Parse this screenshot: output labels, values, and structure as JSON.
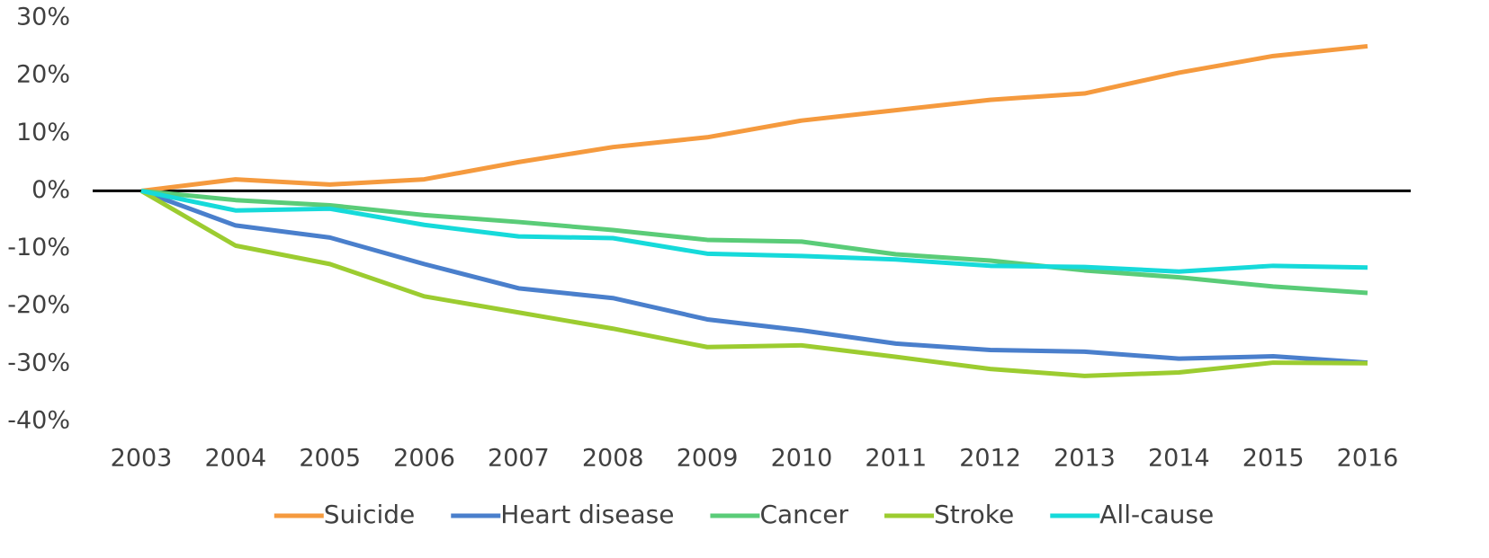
{
  "chart_data": {
    "type": "line",
    "categories": [
      "2003",
      "2004",
      "2005",
      "2006",
      "2007",
      "2008",
      "2009",
      "2010",
      "2011",
      "2012",
      "2013",
      "2014",
      "2015",
      "2016"
    ],
    "series": [
      {
        "name": "Suicide",
        "color": "#f59a3e",
        "values": [
          0,
          2.0,
          1.1,
          2.0,
          5.0,
          7.6,
          9.3,
          12.2,
          14.0,
          15.8,
          16.9,
          20.5,
          23.4,
          25.1
        ]
      },
      {
        "name": "Heart disease",
        "color": "#4a7fcc",
        "values": [
          0,
          -6.0,
          -8.1,
          -12.7,
          -16.9,
          -18.6,
          -22.3,
          -24.2,
          -26.5,
          -27.6,
          -27.9,
          -29.1,
          -28.7,
          -29.8
        ]
      },
      {
        "name": "Cancer",
        "color": "#5acc78",
        "values": [
          0,
          -1.6,
          -2.5,
          -4.2,
          -5.4,
          -6.8,
          -8.5,
          -8.8,
          -11.0,
          -12.1,
          -13.8,
          -15.0,
          -16.6,
          -17.7
        ]
      },
      {
        "name": "Stroke",
        "color": "#9ccc30",
        "values": [
          0,
          -9.5,
          -12.7,
          -18.3,
          -21.1,
          -23.9,
          -27.1,
          -26.8,
          -28.8,
          -30.9,
          -32.1,
          -31.5,
          -29.8,
          -29.9
        ]
      },
      {
        "name": "All-cause",
        "color": "#16dada",
        "values": [
          0,
          -3.4,
          -3.1,
          -5.9,
          -7.9,
          -8.2,
          -10.9,
          -11.3,
          -11.9,
          -13.0,
          -13.2,
          -14.0,
          -13.0,
          -13.3
        ]
      }
    ],
    "ylim": [
      -40,
      30
    ],
    "yticks": [
      {
        "value": 30,
        "label": "30%"
      },
      {
        "value": 20,
        "label": "20%"
      },
      {
        "value": 10,
        "label": "10%"
      },
      {
        "value": 0,
        "label": "0%"
      },
      {
        "value": -10,
        "label": "-10%"
      },
      {
        "value": -20,
        "label": "-20%"
      },
      {
        "value": -30,
        "label": "-30%"
      },
      {
        "value": -40,
        "label": "-40%"
      }
    ],
    "grid": false,
    "legend": "bottom"
  }
}
